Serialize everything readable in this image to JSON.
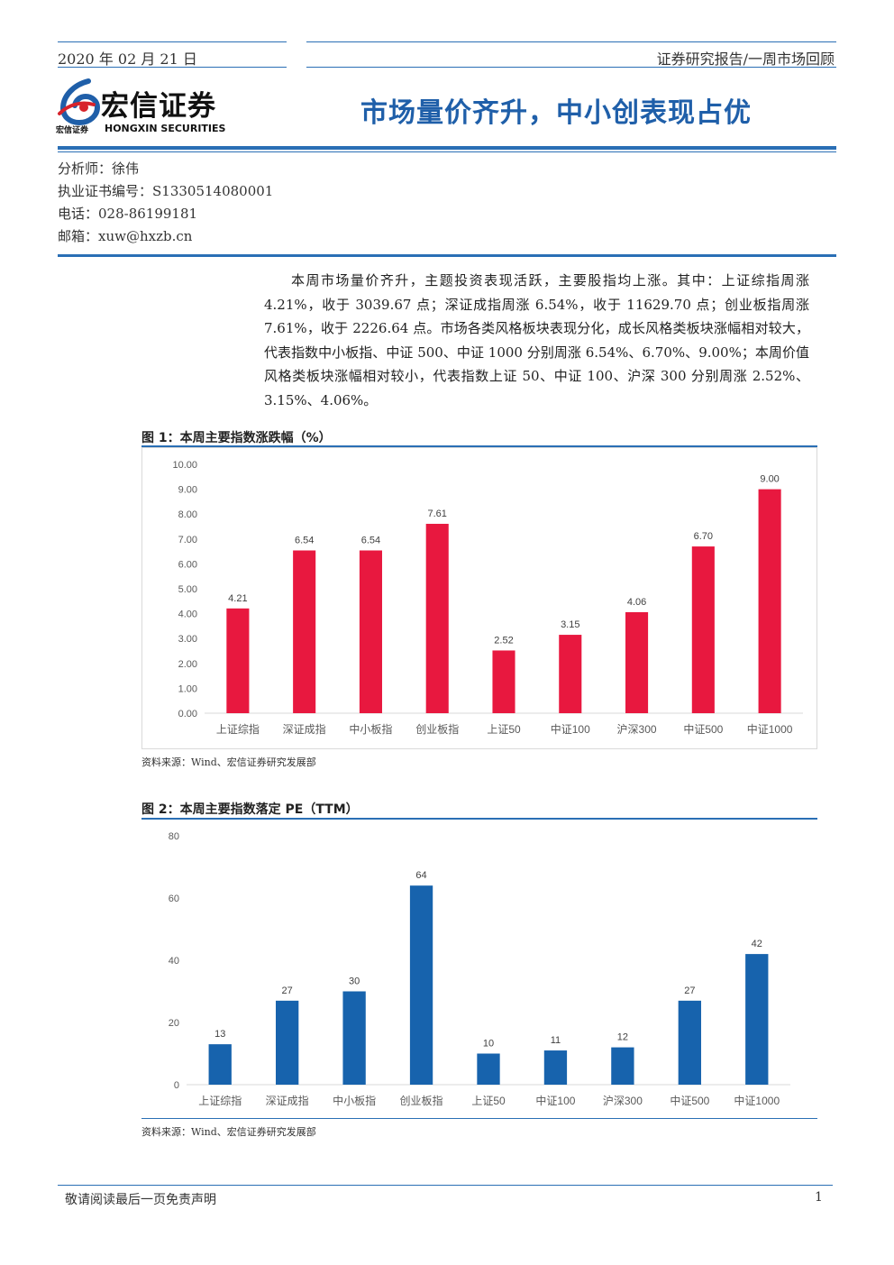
{
  "header": {
    "date": "2020 年 02 月 21 日",
    "report_type": "证券研究报告/一周市场回顾"
  },
  "logo": {
    "name_cn": "宏信证券",
    "name_en": "HONGXIN SECURITIES",
    "small_cn": "宏信证券"
  },
  "title": "市场量价齐升，中小创表现占优",
  "analyst": {
    "name": "分析师：徐伟",
    "cert": "执业证书编号：S1330514080001",
    "phone": "电话：028-86199181",
    "email": "邮箱：xuw@hxzb.cn"
  },
  "summary": "本周市场量价齐升，主题投资表现活跃，主要股指均上涨。其中：上证综指周涨 4.21%，收于 3039.67 点；深证成指周涨 6.54%，收于 11629.70 点；创业板指周涨 7.61%，收于 2226.64 点。市场各类风格板块表现分化，成长风格类板块涨幅相对较大，代表指数中小板指、中证 500、中证 1000 分别周涨 6.54%、6.70%、9.00%；本周价值风格类板块涨幅相对较小，代表指数上证 50、中证 100、沪深 300 分别周涨 2.52%、3.15%、4.06%。",
  "figures": [
    {
      "title": "图 1：本周主要指数涨跌幅（%）",
      "source": "资料来源：Wind、宏信证券研究发展部"
    },
    {
      "title": "图 2：本周主要指数落定 PE（TTM）",
      "source": "资料来源：Wind、宏信证券研究发展部"
    }
  ],
  "chart_data": [
    {
      "type": "bar",
      "categories": [
        "上证综指",
        "深证成指",
        "中小板指",
        "创业板指",
        "上证50",
        "中证100",
        "沪深300",
        "中证500",
        "中证1000"
      ],
      "values": [
        4.21,
        6.54,
        6.54,
        7.61,
        2.52,
        3.15,
        4.06,
        6.7,
        9.0
      ],
      "value_labels": [
        "4.21",
        "6.54",
        "6.54",
        "7.61",
        "2.52",
        "3.15",
        "4.06",
        "6.70",
        "9.00"
      ],
      "yticks": [
        "0.00",
        "1.00",
        "2.00",
        "3.00",
        "4.00",
        "5.00",
        "6.00",
        "7.00",
        "8.00",
        "9.00",
        "10.00"
      ],
      "ylim": [
        0,
        10
      ],
      "color": "#e8183f",
      "grid": false,
      "border": true
    },
    {
      "type": "bar",
      "categories": [
        "上证综指",
        "深证成指",
        "中小板指",
        "创业板指",
        "上证50",
        "中证100",
        "沪深300",
        "中证500",
        "中证1000"
      ],
      "values": [
        13,
        27,
        30,
        64,
        10,
        11,
        12,
        27,
        42
      ],
      "value_labels": [
        "13",
        "27",
        "30",
        "64",
        "10",
        "11",
        "12",
        "27",
        "42"
      ],
      "yticks": [
        "0",
        "20",
        "40",
        "60",
        "80"
      ],
      "ylim": [
        0,
        80
      ],
      "color": "#1763ad",
      "grid": false,
      "border": false
    }
  ],
  "footer": {
    "disclaimer": "敬请阅读最后一页免责声明",
    "page": "1"
  },
  "colors": {
    "accent": "#2a6fb5",
    "title": "#1f5fa9",
    "bar1": "#e8183f",
    "bar2": "#1763ad",
    "logo_red": "#d7232b"
  }
}
